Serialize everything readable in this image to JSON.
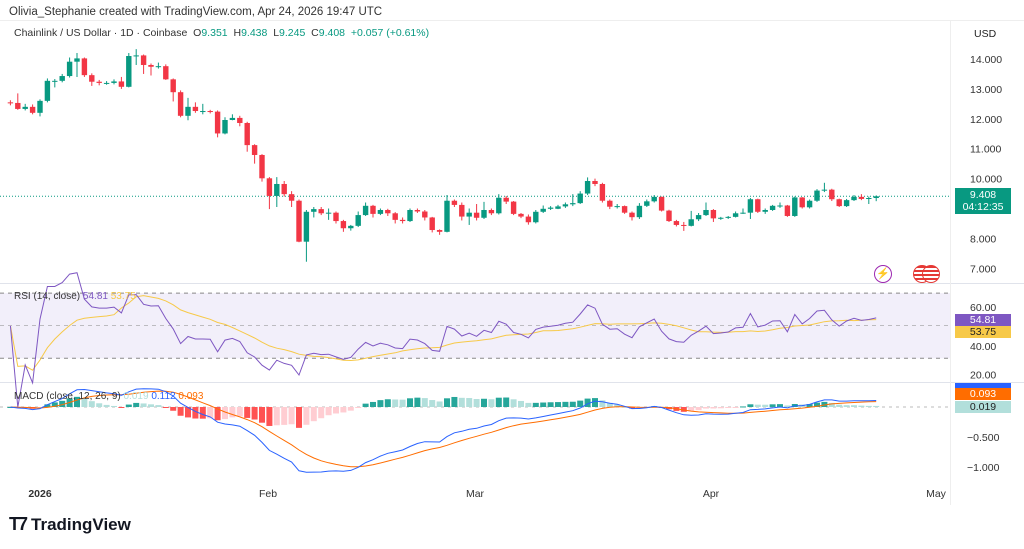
{
  "attribution": "Olivia_Stephanie created with TradingView.com, Apr 24, 2026 19:47 UTC",
  "symbol": {
    "title": "Chainlink / US Dollar · 1D · Coinbase",
    "o_label": "O",
    "o": "9.351",
    "h_label": "H",
    "h": "9.438",
    "l_label": "L",
    "l": "9.245",
    "c_label": "C",
    "c": "9.408",
    "change": "+0.057 (+0.61%)"
  },
  "currency": "USD",
  "last_price": {
    "value": "9.408",
    "countdown": "04:12:35"
  },
  "rsi": {
    "label": "RSI (14, close)",
    "value": "54.81",
    "ma": "53.75",
    "ticks": [
      "60.00",
      "40.00",
      "20.00"
    ]
  },
  "macd": {
    "label": "MACD (close, 12, 26, 9)",
    "hist": "0.019",
    "macd": "0.112",
    "signal": "0.093",
    "ticks": [
      "−0.500",
      "−1.000"
    ]
  },
  "brand": "TradingView",
  "icons": [
    "lightning-icon",
    "us-flag-icon"
  ],
  "colors": {
    "up": "#089981",
    "down": "#f23645",
    "rsi": "#7e57c2",
    "rsi_ma": "#f7c948",
    "macd": "#2962ff",
    "signal": "#ff6d00"
  },
  "chart_data": {
    "type": "candlestick",
    "price_ticks": [
      "14.000",
      "13.000",
      "12.000",
      "11.000",
      "10.000",
      "8.000",
      "7.000"
    ],
    "time_ticks": [
      "2026",
      "Feb",
      "Mar",
      "Apr",
      "May"
    ],
    "ylim": [
      6.6,
      14.6
    ],
    "candles_ohlc": [
      [
        "2025-12-28",
        12.55,
        12.62,
        12.45,
        12.53
      ],
      [
        "2025-12-29",
        12.53,
        12.85,
        12.3,
        12.33
      ],
      [
        "2025-12-30",
        12.33,
        12.5,
        12.28,
        12.4
      ],
      [
        "2025-12-31",
        12.4,
        12.48,
        12.15,
        12.2
      ],
      [
        "2026-01-01",
        12.2,
        12.65,
        12.08,
        12.6
      ],
      [
        "2026-01-02",
        12.6,
        13.35,
        12.55,
        13.27
      ],
      [
        "2026-01-03",
        13.27,
        13.33,
        13.05,
        13.27
      ],
      [
        "2026-01-04",
        13.27,
        13.5,
        13.22,
        13.43
      ],
      [
        "2026-01-05",
        13.43,
        14.05,
        13.38,
        13.91
      ],
      [
        "2026-01-06",
        13.91,
        14.2,
        13.4,
        14.02
      ],
      [
        "2026-01-07",
        14.02,
        14.05,
        13.4,
        13.46
      ],
      [
        "2026-01-08",
        13.46,
        13.52,
        13.1,
        13.24
      ],
      [
        "2026-01-09",
        13.24,
        13.3,
        13.12,
        13.2
      ],
      [
        "2026-01-10",
        13.2,
        13.26,
        13.14,
        13.2
      ],
      [
        "2026-01-11",
        13.2,
        13.32,
        13.15,
        13.25
      ],
      [
        "2026-01-12",
        13.25,
        13.4,
        13.0,
        13.07
      ],
      [
        "2026-01-13",
        13.07,
        14.2,
        13.05,
        14.1
      ],
      [
        "2026-01-14",
        14.1,
        14.33,
        13.8,
        14.12
      ],
      [
        "2026-01-15",
        14.12,
        14.15,
        13.5,
        13.8
      ],
      [
        "2026-01-16",
        13.8,
        13.85,
        13.45,
        13.74
      ],
      [
        "2026-01-17",
        13.74,
        13.88,
        13.68,
        13.76
      ],
      [
        "2026-01-18",
        13.76,
        13.82,
        13.3,
        13.32
      ],
      [
        "2026-01-19",
        13.32,
        13.35,
        12.58,
        12.89
      ],
      [
        "2026-01-20",
        12.89,
        12.95,
        12.05,
        12.1
      ],
      [
        "2026-01-21",
        12.1,
        12.7,
        11.95,
        12.4
      ],
      [
        "2026-01-22",
        12.4,
        12.55,
        12.2,
        12.26
      ],
      [
        "2026-01-23",
        12.26,
        12.5,
        12.15,
        12.26
      ],
      [
        "2026-01-24",
        12.26,
        12.3,
        12.18,
        12.24
      ],
      [
        "2026-01-25",
        12.24,
        12.28,
        11.38,
        11.51
      ],
      [
        "2026-01-26",
        11.51,
        12.05,
        11.48,
        11.96
      ],
      [
        "2026-01-27",
        11.96,
        12.15,
        11.95,
        12.03
      ],
      [
        "2026-01-28",
        12.03,
        12.1,
        11.75,
        11.86
      ],
      [
        "2026-01-29",
        11.86,
        11.9,
        10.9,
        11.12
      ],
      [
        "2026-01-30",
        11.12,
        11.15,
        10.5,
        10.79
      ],
      [
        "2026-01-31",
        10.79,
        10.82,
        9.9,
        10.01
      ],
      [
        "2026-02-01",
        10.01,
        10.05,
        8.98,
        9.42
      ],
      [
        "2026-02-02",
        9.42,
        10.05,
        9.05,
        9.82
      ],
      [
        "2026-02-03",
        9.82,
        9.92,
        9.4,
        9.48
      ],
      [
        "2026-02-04",
        9.48,
        9.58,
        9.05,
        9.26
      ],
      [
        "2026-02-05",
        9.26,
        9.3,
        7.87,
        7.89
      ],
      [
        "2026-02-06",
        7.89,
        8.95,
        7.22,
        8.89
      ],
      [
        "2026-02-07",
        8.89,
        9.05,
        8.7,
        8.98
      ],
      [
        "2026-02-08",
        8.98,
        9.05,
        8.78,
        8.84
      ],
      [
        "2026-02-09",
        8.84,
        9.0,
        8.62,
        8.86
      ],
      [
        "2026-02-10",
        8.86,
        8.9,
        8.5,
        8.58
      ],
      [
        "2026-02-11",
        8.58,
        8.62,
        8.22,
        8.34
      ],
      [
        "2026-02-12",
        8.34,
        8.45,
        8.26,
        8.42
      ],
      [
        "2026-02-13",
        8.42,
        8.9,
        8.38,
        8.78
      ],
      [
        "2026-02-14",
        8.78,
        9.2,
        8.75,
        9.09
      ],
      [
        "2026-02-15",
        9.09,
        9.12,
        8.7,
        8.82
      ],
      [
        "2026-02-16",
        8.82,
        9.0,
        8.78,
        8.95
      ],
      [
        "2026-02-17",
        8.95,
        8.99,
        8.75,
        8.84
      ],
      [
        "2026-02-18",
        8.84,
        8.88,
        8.5,
        8.62
      ],
      [
        "2026-02-19",
        8.62,
        8.7,
        8.5,
        8.58
      ],
      [
        "2026-02-20",
        8.58,
        9.0,
        8.55,
        8.95
      ],
      [
        "2026-02-21",
        8.95,
        9.0,
        8.85,
        8.9
      ],
      [
        "2026-02-22",
        8.9,
        8.95,
        8.6,
        8.7
      ],
      [
        "2026-02-23",
        8.7,
        8.72,
        8.2,
        8.28
      ],
      [
        "2026-02-24",
        8.28,
        8.3,
        8.12,
        8.22
      ],
      [
        "2026-02-25",
        8.22,
        9.45,
        8.2,
        9.26
      ],
      [
        "2026-02-26",
        9.26,
        9.3,
        9.05,
        9.12
      ],
      [
        "2026-02-27",
        9.12,
        9.2,
        8.6,
        8.73
      ],
      [
        "2026-02-28",
        8.73,
        9.0,
        8.45,
        8.86
      ],
      [
        "2026-03-01",
        8.86,
        9.15,
        8.6,
        8.69
      ],
      [
        "2026-03-02",
        8.69,
        9.22,
        8.65,
        8.95
      ],
      [
        "2026-03-03",
        8.95,
        9.0,
        8.78,
        8.84
      ],
      [
        "2026-03-04",
        8.84,
        9.48,
        8.8,
        9.36
      ],
      [
        "2026-03-05",
        9.36,
        9.42,
        9.15,
        9.23
      ],
      [
        "2026-03-06",
        9.23,
        9.25,
        8.78,
        8.82
      ],
      [
        "2026-03-07",
        8.82,
        8.85,
        8.68,
        8.73
      ],
      [
        "2026-03-08",
        8.73,
        8.8,
        8.46,
        8.54
      ],
      [
        "2026-03-09",
        8.54,
        8.95,
        8.5,
        8.89
      ],
      [
        "2026-03-10",
        8.89,
        9.1,
        8.85,
        8.99
      ],
      [
        "2026-03-11",
        8.99,
        9.08,
        8.95,
        9.03
      ],
      [
        "2026-03-12",
        8.99,
        9.12,
        8.98,
        9.07
      ],
      [
        "2026-03-13",
        9.07,
        9.2,
        9.02,
        9.14
      ],
      [
        "2026-03-14",
        9.14,
        9.48,
        9.08,
        9.18
      ],
      [
        "2026-03-15",
        9.18,
        9.58,
        9.15,
        9.5
      ],
      [
        "2026-03-16",
        9.5,
        10.04,
        9.45,
        9.92
      ],
      [
        "2026-03-17",
        9.92,
        10.0,
        9.75,
        9.82
      ],
      [
        "2026-03-18",
        9.82,
        9.86,
        9.2,
        9.26
      ],
      [
        "2026-03-19",
        9.26,
        9.3,
        8.98,
        9.06
      ],
      [
        "2026-03-20",
        9.06,
        9.15,
        9.0,
        9.08
      ],
      [
        "2026-03-21",
        9.08,
        9.1,
        8.82,
        8.86
      ],
      [
        "2026-03-22",
        8.86,
        8.9,
        8.6,
        8.71
      ],
      [
        "2026-03-23",
        8.71,
        9.18,
        8.65,
        9.09
      ],
      [
        "2026-03-24",
        9.09,
        9.3,
        9.05,
        9.24
      ],
      [
        "2026-03-25",
        9.24,
        9.45,
        9.2,
        9.39
      ],
      [
        "2026-03-26",
        9.39,
        9.4,
        8.9,
        8.93
      ],
      [
        "2026-03-27",
        8.93,
        8.96,
        8.55,
        8.58
      ],
      [
        "2026-03-28",
        8.58,
        8.62,
        8.4,
        8.45
      ],
      [
        "2026-03-29",
        8.45,
        8.55,
        8.25,
        8.42
      ],
      [
        "2026-03-30",
        8.42,
        8.92,
        8.4,
        8.64
      ],
      [
        "2026-03-31",
        8.64,
        8.85,
        8.58,
        8.78
      ],
      [
        "2026-04-01",
        8.78,
        9.2,
        8.75,
        8.95
      ],
      [
        "2026-04-02",
        8.95,
        8.98,
        8.55,
        8.67
      ],
      [
        "2026-04-03",
        8.67,
        8.72,
        8.62,
        8.69
      ],
      [
        "2026-04-04",
        8.69,
        8.75,
        8.65,
        8.72
      ],
      [
        "2026-04-05",
        8.72,
        8.9,
        8.7,
        8.84
      ],
      [
        "2026-04-06",
        8.84,
        9.0,
        8.82,
        8.86
      ],
      [
        "2026-04-07",
        8.86,
        9.35,
        8.65,
        9.31
      ],
      [
        "2026-04-08",
        9.31,
        9.33,
        8.85,
        8.89
      ],
      [
        "2026-04-09",
        8.89,
        9.0,
        8.82,
        8.95
      ],
      [
        "2026-04-10",
        8.95,
        9.12,
        8.92,
        9.09
      ],
      [
        "2026-04-11",
        9.09,
        9.2,
        9.02,
        9.1
      ],
      [
        "2026-04-12",
        9.1,
        9.12,
        8.72,
        8.75
      ],
      [
        "2026-04-13",
        8.75,
        9.4,
        8.72,
        9.37
      ],
      [
        "2026-04-14",
        9.37,
        9.38,
        9.0,
        9.04
      ],
      [
        "2026-04-15",
        9.04,
        9.3,
        9.0,
        9.26
      ],
      [
        "2026-04-16",
        9.26,
        9.65,
        9.22,
        9.6
      ],
      [
        "2026-04-17",
        9.6,
        9.86,
        9.55,
        9.63
      ],
      [
        "2026-04-18",
        9.63,
        9.66,
        9.25,
        9.31
      ],
      [
        "2026-04-19",
        9.31,
        9.33,
        9.05,
        9.08
      ],
      [
        "2026-04-20",
        9.08,
        9.32,
        9.05,
        9.28
      ],
      [
        "2026-04-21",
        9.28,
        9.45,
        9.25,
        9.39
      ],
      [
        "2026-04-22",
        9.39,
        9.48,
        9.28,
        9.32
      ],
      [
        "2026-04-23",
        9.32,
        9.4,
        9.15,
        9.351
      ],
      [
        "2026-04-24",
        9.351,
        9.438,
        9.245,
        9.408
      ]
    ]
  }
}
